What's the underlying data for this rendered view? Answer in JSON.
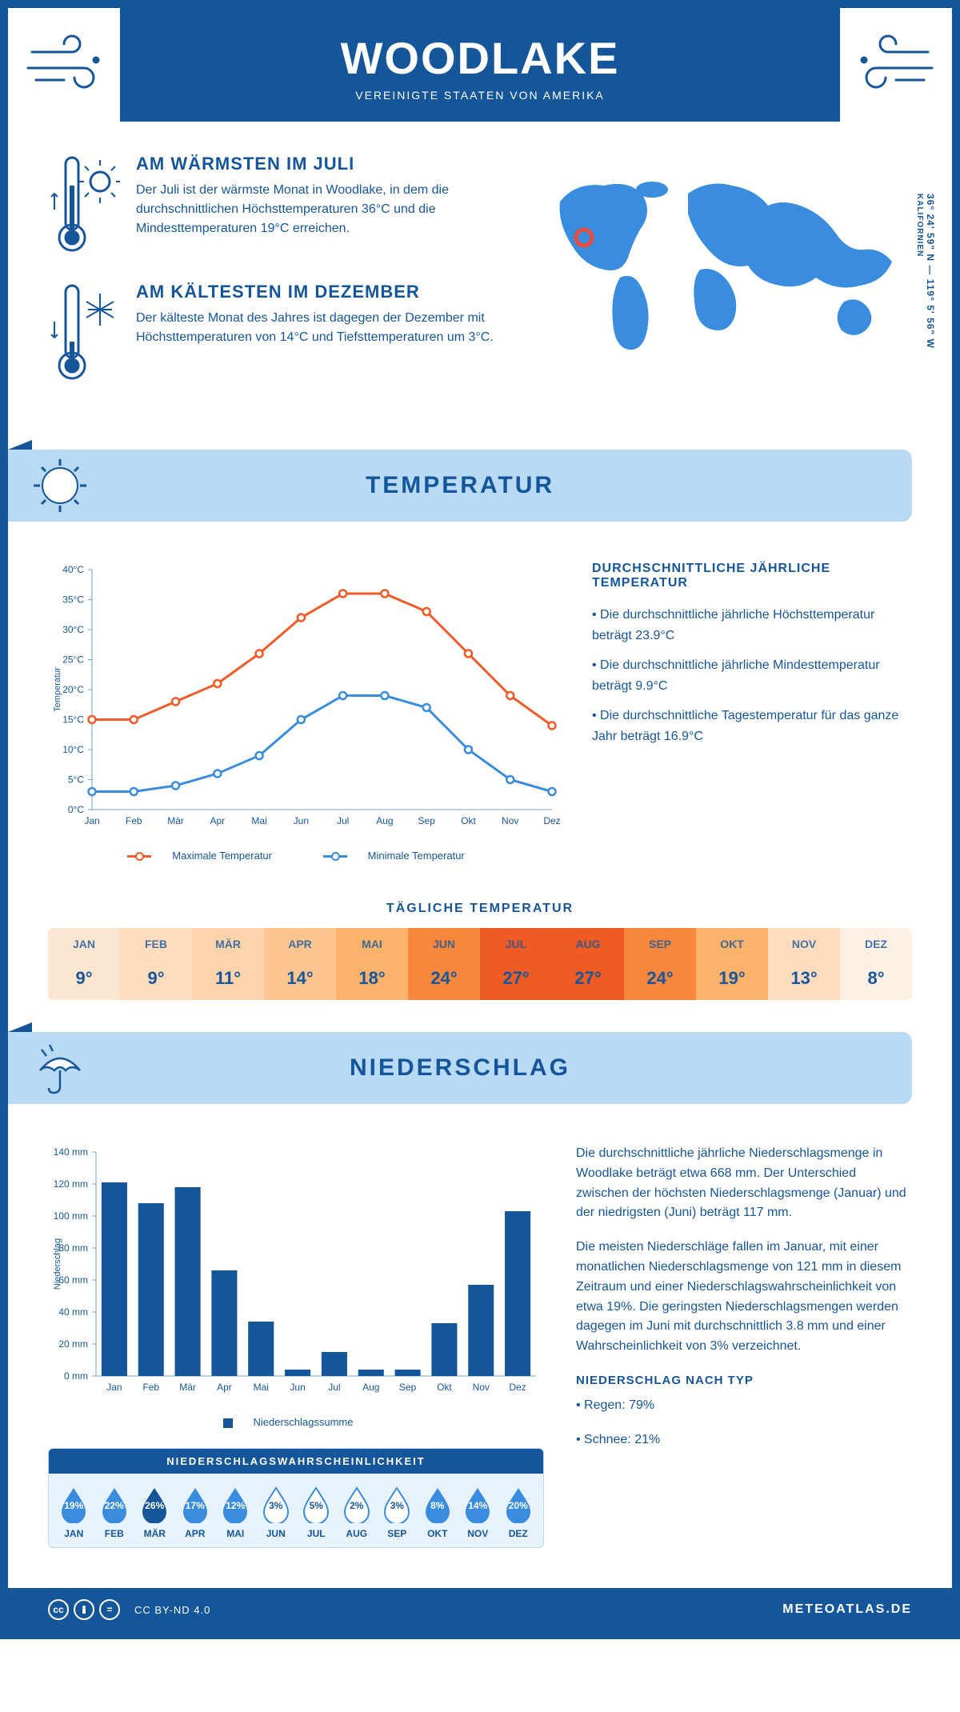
{
  "header": {
    "title": "WOODLAKE",
    "subtitle": "VEREINIGTE STAATEN VON AMERIKA"
  },
  "colors": {
    "primary": "#15569b",
    "light": "#b8daf5",
    "accent_orange": "#f05a28",
    "accent_blue": "#3a8dde",
    "bg": "#ffffff",
    "panel": "#e8f2fb"
  },
  "coords": {
    "text": "36° 24' 59\" N — 119° 5' 56\" W",
    "region": "KALIFORNIEN"
  },
  "warm": {
    "title": "AM WÄRMSTEN IM JULI",
    "text": "Der Juli ist der wärmste Monat in Woodlake, in dem die durchschnittlichen Höchsttemperaturen 36°C und die Mindesttemperaturen 19°C erreichen."
  },
  "cold": {
    "title": "AM KÄLTESTEN IM DEZEMBER",
    "text": "Der kälteste Monat des Jahres ist dagegen der Dezember mit Höchsttemperaturen von 14°C und Tiefsttemperaturen um 3°C."
  },
  "sections": {
    "temp": "TEMPERATUR",
    "precip": "NIEDERSCHLAG"
  },
  "temp_chart": {
    "months": [
      "Jan",
      "Feb",
      "Mär",
      "Apr",
      "Mai",
      "Jun",
      "Jul",
      "Aug",
      "Sep",
      "Okt",
      "Nov",
      "Dez"
    ],
    "max": [
      15,
      15,
      18,
      21,
      26,
      32,
      36,
      36,
      33,
      26,
      19,
      14
    ],
    "min": [
      3,
      3,
      4,
      6,
      9,
      15,
      19,
      19,
      17,
      10,
      5,
      3
    ],
    "ylim": [
      0,
      40
    ],
    "ytick": 5,
    "yunit": "°C",
    "ylabel": "Temperatur",
    "colors": {
      "max": "#f05a28",
      "min": "#3a8dde"
    },
    "legend": {
      "max": "Maximale Temperatur",
      "min": "Minimale Temperatur"
    }
  },
  "temp_side": {
    "title": "DURCHSCHNITTLICHE JÄHRLICHE TEMPERATUR",
    "bullets": [
      "• Die durchschnittliche jährliche Höchsttemperatur beträgt 23.9°C",
      "• Die durchschnittliche jährliche Mindesttemperatur beträgt 9.9°C",
      "• Die durchschnittliche Tagestemperatur für das ganze Jahr beträgt 16.9°C"
    ]
  },
  "daily": {
    "title": "TÄGLICHE TEMPERATUR",
    "months": [
      "JAN",
      "FEB",
      "MÄR",
      "APR",
      "MAI",
      "JUN",
      "JUL",
      "AUG",
      "SEP",
      "OKT",
      "NOV",
      "DEZ"
    ],
    "values": [
      9,
      9,
      11,
      14,
      18,
      24,
      27,
      27,
      24,
      19,
      13,
      8
    ],
    "unit": "°",
    "cell_colors": [
      "#fde6cf",
      "#fdddbd",
      "#fcd3ab",
      "#fcc58f",
      "#fbb26b",
      "#f6873d",
      "#ef5b23",
      "#ef5b23",
      "#f6873d",
      "#fbb26b",
      "#fdddbd",
      "#fef1e3"
    ]
  },
  "precip_chart": {
    "months": [
      "Jan",
      "Feb",
      "Mär",
      "Apr",
      "Mai",
      "Jun",
      "Jul",
      "Aug",
      "Sep",
      "Okt",
      "Nov",
      "Dez"
    ],
    "values": [
      121,
      108,
      118,
      66,
      34,
      4,
      15,
      4,
      4,
      33,
      57,
      103
    ],
    "ylim": [
      0,
      140
    ],
    "ytick": 20,
    "yunit": " mm",
    "ylabel": "Niederschlag",
    "bar_color": "#15569b",
    "legend": "Niederschlagssumme"
  },
  "precip_text": {
    "p1": "Die durchschnittliche jährliche Niederschlagsmenge in Woodlake beträgt etwa 668 mm. Der Unterschied zwischen der höchsten Niederschlagsmenge (Januar) und der niedrigsten (Juni) beträgt 117 mm.",
    "p2": "Die meisten Niederschläge fallen im Januar, mit einer monatlichen Niederschlagsmenge von 121 mm in diesem Zeitraum und einer Niederschlagswahrscheinlichkeit von etwa 19%. Die geringsten Niederschlagsmengen werden dagegen im Juni mit durchschnittlich 3.8 mm und einer Wahrscheinlichkeit von 3% verzeichnet.",
    "type_title": "NIEDERSCHLAG NACH TYP",
    "types": [
      "• Regen: 79%",
      "• Schnee: 21%"
    ]
  },
  "prob": {
    "title": "NIEDERSCHLAGSWAHRSCHEINLICHKEIT",
    "months": [
      "JAN",
      "FEB",
      "MÄR",
      "APR",
      "MAI",
      "JUN",
      "JUL",
      "AUG",
      "SEP",
      "OKT",
      "NOV",
      "DEZ"
    ],
    "values": [
      19,
      22,
      26,
      17,
      12,
      3,
      5,
      2,
      3,
      8,
      14,
      20
    ],
    "max_idx": 2,
    "colors": {
      "fill": "#3a8dde",
      "empty_stroke": "#3a8dde",
      "max": "#15569b"
    }
  },
  "footer": {
    "license": "CC BY-ND 4.0",
    "brand": "METEOATLAS.DE"
  }
}
